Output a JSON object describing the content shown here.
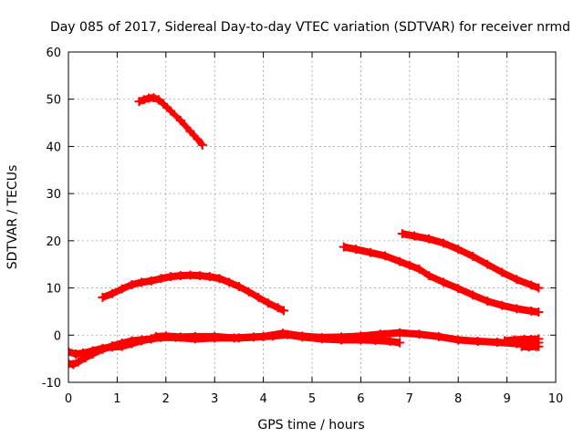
{
  "chart_data": {
    "type": "scatter",
    "title": "Day 085 of 2017, Sidereal Day-to-day VTEC variation (SDTVAR) for receiver nrmd",
    "xlabel": "GPS time / hours",
    "ylabel": "SDTVAR / TECUs",
    "xlim": [
      0,
      10
    ],
    "ylim": [
      -10,
      60
    ],
    "xticks": [
      "0",
      "1",
      "2",
      "3",
      "4",
      "5",
      "6",
      "7",
      "8",
      "9",
      "10"
    ],
    "yticks": [
      "-10",
      "0",
      "10",
      "20",
      "30",
      "40",
      "50",
      "60"
    ],
    "grid": true,
    "marker": "+",
    "color": "#ff0000",
    "series": [
      {
        "x": [
          1.45,
          1.55,
          1.65,
          1.75,
          1.85,
          1.95,
          2.1,
          2.3,
          2.5,
          2.65,
          2.75
        ],
        "y": [
          49.5,
          49.9,
          50.2,
          50.3,
          49.9,
          49.0,
          47.5,
          45.5,
          43.2,
          41.5,
          40.3
        ]
      },
      {
        "x": [
          0.7,
          0.9,
          1.1,
          1.3,
          1.5,
          1.7,
          1.9,
          2.1,
          2.3,
          2.5,
          2.7,
          2.9,
          3.1,
          3.3,
          3.5,
          3.7,
          3.9,
          4.1,
          4.3,
          4.42
        ],
        "y": [
          8.0,
          8.8,
          9.8,
          10.7,
          11.2,
          11.5,
          12.0,
          12.4,
          12.6,
          12.7,
          12.6,
          12.4,
          12.0,
          11.2,
          10.3,
          9.2,
          8.0,
          6.8,
          5.8,
          5.2
        ]
      },
      {
        "x": [
          5.65,
          5.9,
          6.2,
          6.5,
          6.8,
          7.0,
          7.2,
          7.4,
          7.7,
          8.0,
          8.3,
          8.6,
          8.9,
          9.2,
          9.5,
          9.65
        ],
        "y": [
          18.7,
          18.2,
          17.5,
          16.8,
          15.6,
          14.8,
          14.0,
          12.6,
          11.2,
          9.9,
          8.5,
          7.2,
          6.3,
          5.6,
          5.1,
          4.9
        ]
      },
      {
        "x": [
          6.85,
          7.1,
          7.4,
          7.7,
          8.0,
          8.3,
          8.6,
          8.9,
          9.2,
          9.5,
          9.65
        ],
        "y": [
          21.5,
          21.0,
          20.4,
          19.5,
          18.2,
          16.7,
          15.0,
          13.3,
          11.8,
          10.6,
          10.0
        ]
      },
      {
        "x": [
          0.0,
          0.1,
          0.2,
          0.35,
          0.5,
          0.7,
          0.9,
          1.1,
          1.3,
          1.5,
          1.7,
          1.8,
          2.0,
          2.3,
          2.6,
          3.0,
          3.4,
          3.8,
          4.2,
          4.5,
          4.8,
          5.2,
          5.6,
          6.0,
          6.3,
          6.6,
          6.8
        ],
        "y": [
          -6.0,
          -6.2,
          -5.7,
          -4.8,
          -4.0,
          -3.0,
          -2.3,
          -1.7,
          -1.2,
          -1.0,
          -0.8,
          -0.3,
          -0.2,
          -0.4,
          -0.3,
          -0.3,
          -0.6,
          -0.4,
          -0.2,
          0.1,
          -0.4,
          -0.8,
          -1.0,
          -1.0,
          -1.1,
          -1.3,
          -1.6
        ]
      },
      {
        "x": [
          0.0,
          0.15,
          0.3,
          0.5,
          0.7,
          0.9,
          1.1,
          1.3,
          1.5,
          1.7,
          1.9,
          2.2,
          2.6,
          3.0,
          3.5,
          4.0,
          4.4,
          4.8,
          5.2,
          5.6,
          6.0,
          6.4,
          6.8,
          7.2,
          7.6,
          8.0,
          8.4,
          8.8,
          9.2,
          9.5,
          9.65
        ],
        "y": [
          -3.5,
          -4.0,
          -3.8,
          -3.3,
          -2.8,
          -2.5,
          -2.4,
          -1.8,
          -1.2,
          -0.8,
          -0.5,
          -0.5,
          -0.8,
          -0.6,
          -0.6,
          -0.3,
          0.4,
          -0.2,
          -0.5,
          -0.4,
          -0.2,
          0.2,
          0.5,
          0.2,
          -0.3,
          -1.0,
          -1.3,
          -1.5,
          -1.8,
          -1.8,
          -1.6
        ]
      },
      {
        "x": [
          8.95,
          9.15,
          9.35,
          9.5,
          9.65
        ],
        "y": [
          -1.2,
          -1.0,
          -0.9,
          -0.9,
          -0.8
        ]
      },
      {
        "x": [
          9.3,
          9.45,
          9.6,
          9.65
        ],
        "y": [
          -2.4,
          -2.5,
          -2.4,
          -2.4
        ]
      }
    ]
  }
}
